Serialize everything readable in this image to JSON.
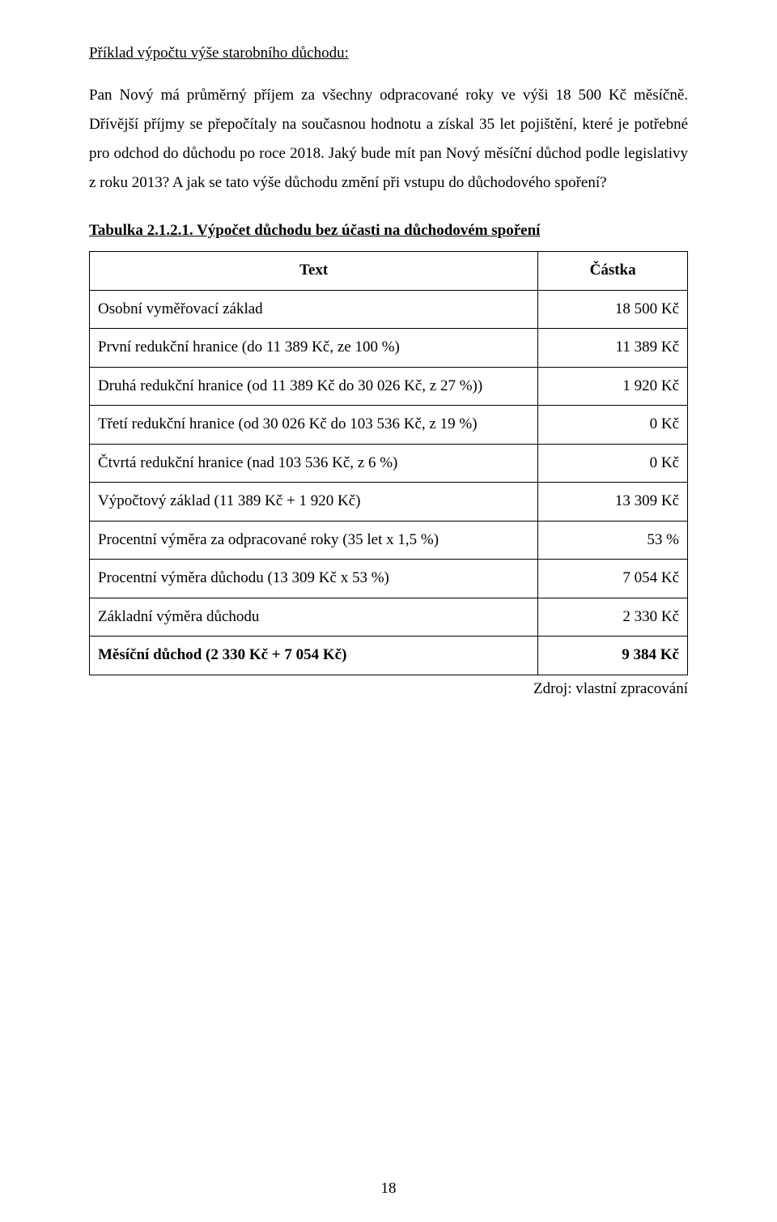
{
  "heading": "Příklad výpočtu výše starobního důchodu:",
  "paragraph": "Pan Nový má průměrný příjem za všechny odpracované roky ve výši 18 500 Kč měsíčně. Dřívější příjmy se přepočítaly na současnou hodnotu a získal 35 let pojištění, které je potřebné pro odchod do důchodu po roce 2018. Jaký bude mít pan Nový měsíční důchod podle legislativy z roku 2013? A jak se tato výše důchodu změní při vstupu do důchodového spoření?",
  "table_title": "Tabulka 2.1.2.1. Výpočet důchodu bez účasti na důchodovém spoření",
  "table": {
    "header": {
      "text": "Text",
      "amount": "Částka"
    },
    "rows": [
      {
        "label": "Osobní vyměřovací základ",
        "amount": "18 500 Kč",
        "bold": false
      },
      {
        "label": "První redukční hranice (do 11 389 Kč, ze 100 %)",
        "amount": "11 389 Kč",
        "bold": false
      },
      {
        "label": "Druhá redukční hranice (od 11 389 Kč do 30 026 Kč, z 27 %))",
        "amount": "1 920 Kč",
        "bold": false
      },
      {
        "label": "Třetí redukční hranice (od 30 026 Kč do 103 536 Kč, z 19 %)",
        "amount": "0 Kč",
        "bold": false
      },
      {
        "label": "Čtvrtá redukční hranice (nad 103 536 Kč, z 6 %)",
        "amount": "0 Kč",
        "bold": false
      },
      {
        "label": "Výpočtový základ (11 389 Kč + 1 920 Kč)",
        "amount": "13 309 Kč",
        "bold": false
      },
      {
        "label": "Procentní výměra za odpracované roky (35 let x 1,5 %)",
        "amount": "53 %",
        "bold": false
      },
      {
        "label": "Procentní výměra důchodu (13 309 Kč x 53 %)",
        "amount": "7 054 Kč",
        "bold": false
      },
      {
        "label": "Základní výměra důchodu",
        "amount": "2 330 Kč",
        "bold": false
      },
      {
        "label": "Měsíční důchod (2 330 Kč + 7 054 Kč)",
        "amount": "9 384 Kč",
        "bold": true
      }
    ]
  },
  "source": "Zdroj: vlastní zpracování",
  "page_number": "18"
}
